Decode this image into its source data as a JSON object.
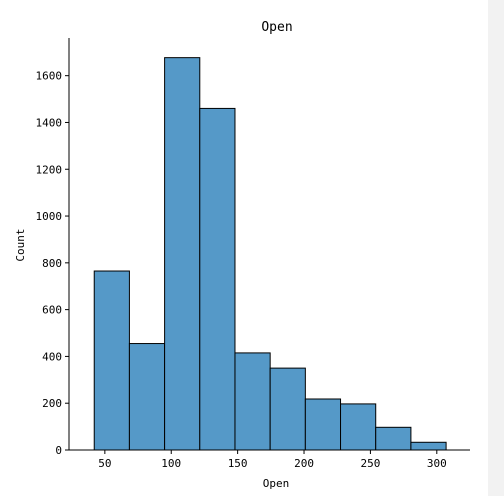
{
  "chart_data": {
    "type": "bar",
    "title": "Open",
    "xlabel": "Open",
    "ylabel": "Count",
    "bins": [
      {
        "x0": 42,
        "x1": 68.5,
        "count": 765
      },
      {
        "x0": 68.5,
        "x1": 95,
        "count": 455
      },
      {
        "x0": 95,
        "x1": 121.5,
        "count": 1677
      },
      {
        "x0": 121.5,
        "x1": 148,
        "count": 1460
      },
      {
        "x0": 148,
        "x1": 174.5,
        "count": 415
      },
      {
        "x0": 174.5,
        "x1": 201,
        "count": 350
      },
      {
        "x0": 201,
        "x1": 227.5,
        "count": 218
      },
      {
        "x0": 227.5,
        "x1": 254,
        "count": 197
      },
      {
        "x0": 254,
        "x1": 280.5,
        "count": 97
      },
      {
        "x0": 280.5,
        "x1": 307,
        "count": 33
      }
    ],
    "xticks": [
      50,
      100,
      150,
      200,
      250,
      300
    ],
    "yticks": [
      0,
      200,
      400,
      600,
      800,
      1000,
      1200,
      1400,
      1600
    ],
    "xlim": [
      23,
      325
    ],
    "ylim": [
      0,
      1761
    ],
    "grid": false,
    "colors": {
      "bar_fill": "#5599c8",
      "bar_edge": "#000000"
    }
  }
}
